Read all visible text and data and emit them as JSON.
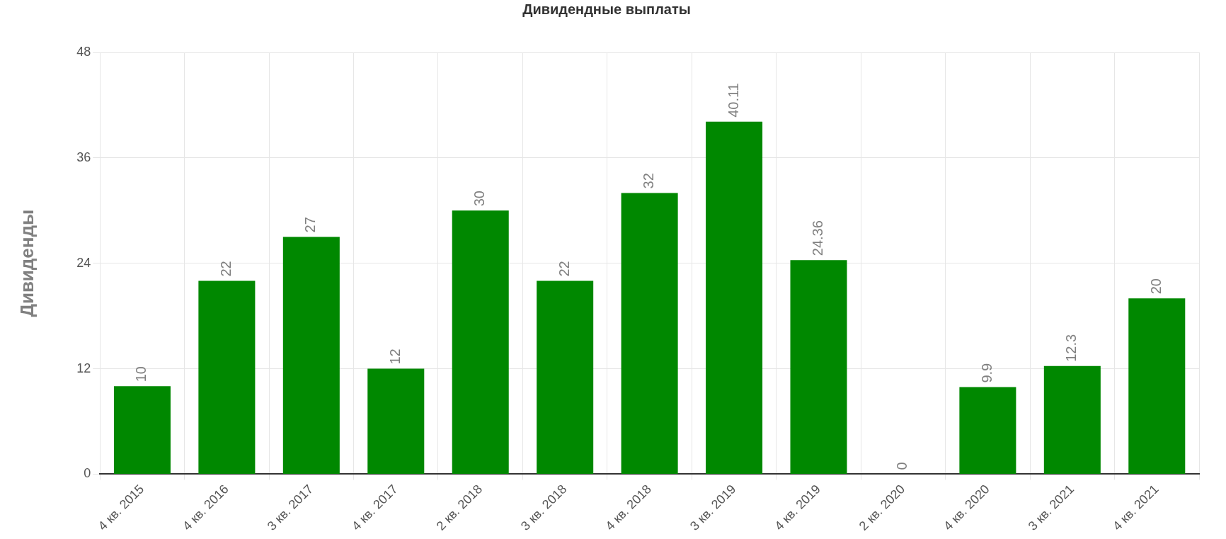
{
  "chart_data": {
    "type": "bar",
    "title": "Дивидендные выплаты",
    "ylabel": "Дивиденды",
    "categories": [
      "4 кв. 2015",
      "4 кв. 2016",
      "3 кв. 2017",
      "4 кв. 2017",
      "2 кв. 2018",
      "3 кв. 2018",
      "4 кв. 2018",
      "3 кв. 2019",
      "4 кв. 2019",
      "2 кв. 2020",
      "4 кв. 2020",
      "3 кв. 2021",
      "4 кв. 2021"
    ],
    "values": [
      10,
      22,
      27,
      12,
      30,
      22,
      32,
      40.11,
      24.36,
      0,
      9.9,
      12.3,
      20
    ],
    "color": "#008800",
    "ylim": [
      0,
      48
    ],
    "yticks": [
      0,
      12,
      24,
      36,
      48
    ],
    "grid": true,
    "data_labels": true,
    "legend": false
  }
}
